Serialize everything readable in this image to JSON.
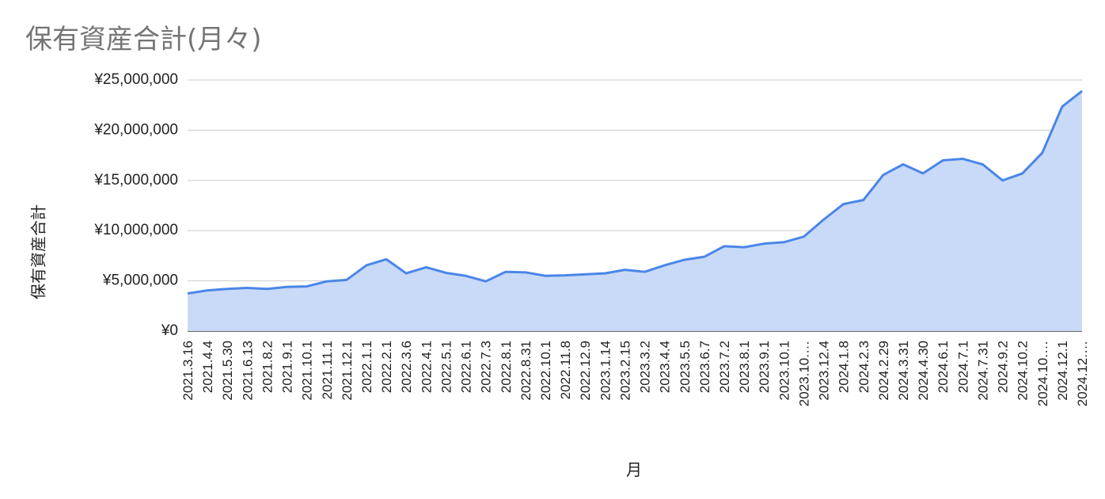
{
  "chart_data": {
    "type": "area",
    "title": "保有資産合計(月々)",
    "xlabel": "月",
    "ylabel": "保有資産合計",
    "ylim": [
      0,
      25000000
    ],
    "yticks": [
      "¥0",
      "¥5,000,000",
      "¥10,000,000",
      "¥15,000,000",
      "¥20,000,000",
      "¥25,000,000"
    ],
    "grid": true,
    "colors": {
      "line": "#4a86e8",
      "fill": "#c9daf8",
      "grid": "#cccccc"
    },
    "x_tick_labels": [
      "2021.3.16",
      "2021.4.4",
      "2021.5.30",
      "2021.6.13",
      "2021.8.2",
      "2021.9.1",
      "2021.10.1",
      "2021.11.1",
      "2021.12.1",
      "2022.1.1",
      "2022.2.1",
      "2022.3.6",
      "2022.4.1",
      "2022.5.1",
      "2022.6.1",
      "2022.7.3",
      "2022.8.1",
      "2022.8.31",
      "2022.10.1",
      "2022.11.8",
      "2022.12.9",
      "2023.1.14",
      "2023.2.15",
      "2023.3.2",
      "2023.4.4",
      "2023.5.5",
      "2023.6.7",
      "2023.7.2",
      "2023.8.1",
      "2023.9.1",
      "2023.10.1",
      "2023.10.…",
      "2023.12.4",
      "2024.1.8",
      "2024.2.3",
      "2024.2.29",
      "2024.3.31",
      "2024.4.30",
      "2024.6.1",
      "2024.7.1",
      "2024.7.31",
      "2024.9.2",
      "2024.10.2",
      "2024.10.…",
      "2024.12.1",
      "2024.12.…"
    ],
    "values": [
      3750000,
      4050000,
      4200000,
      4300000,
      4200000,
      4400000,
      4450000,
      4950000,
      5100000,
      6550000,
      7150000,
      5750000,
      6350000,
      5800000,
      5500000,
      4950000,
      5900000,
      5850000,
      5500000,
      5550000,
      5650000,
      5750000,
      6100000,
      5900000,
      6550000,
      7100000,
      7400000,
      8450000,
      8350000,
      8700000,
      8850000,
      9400000,
      11100000,
      12650000,
      13050000,
      15550000,
      16600000,
      15700000,
      17000000,
      17150000,
      16600000,
      15000000,
      15700000,
      17750000,
      22350000,
      23900000
    ]
  }
}
